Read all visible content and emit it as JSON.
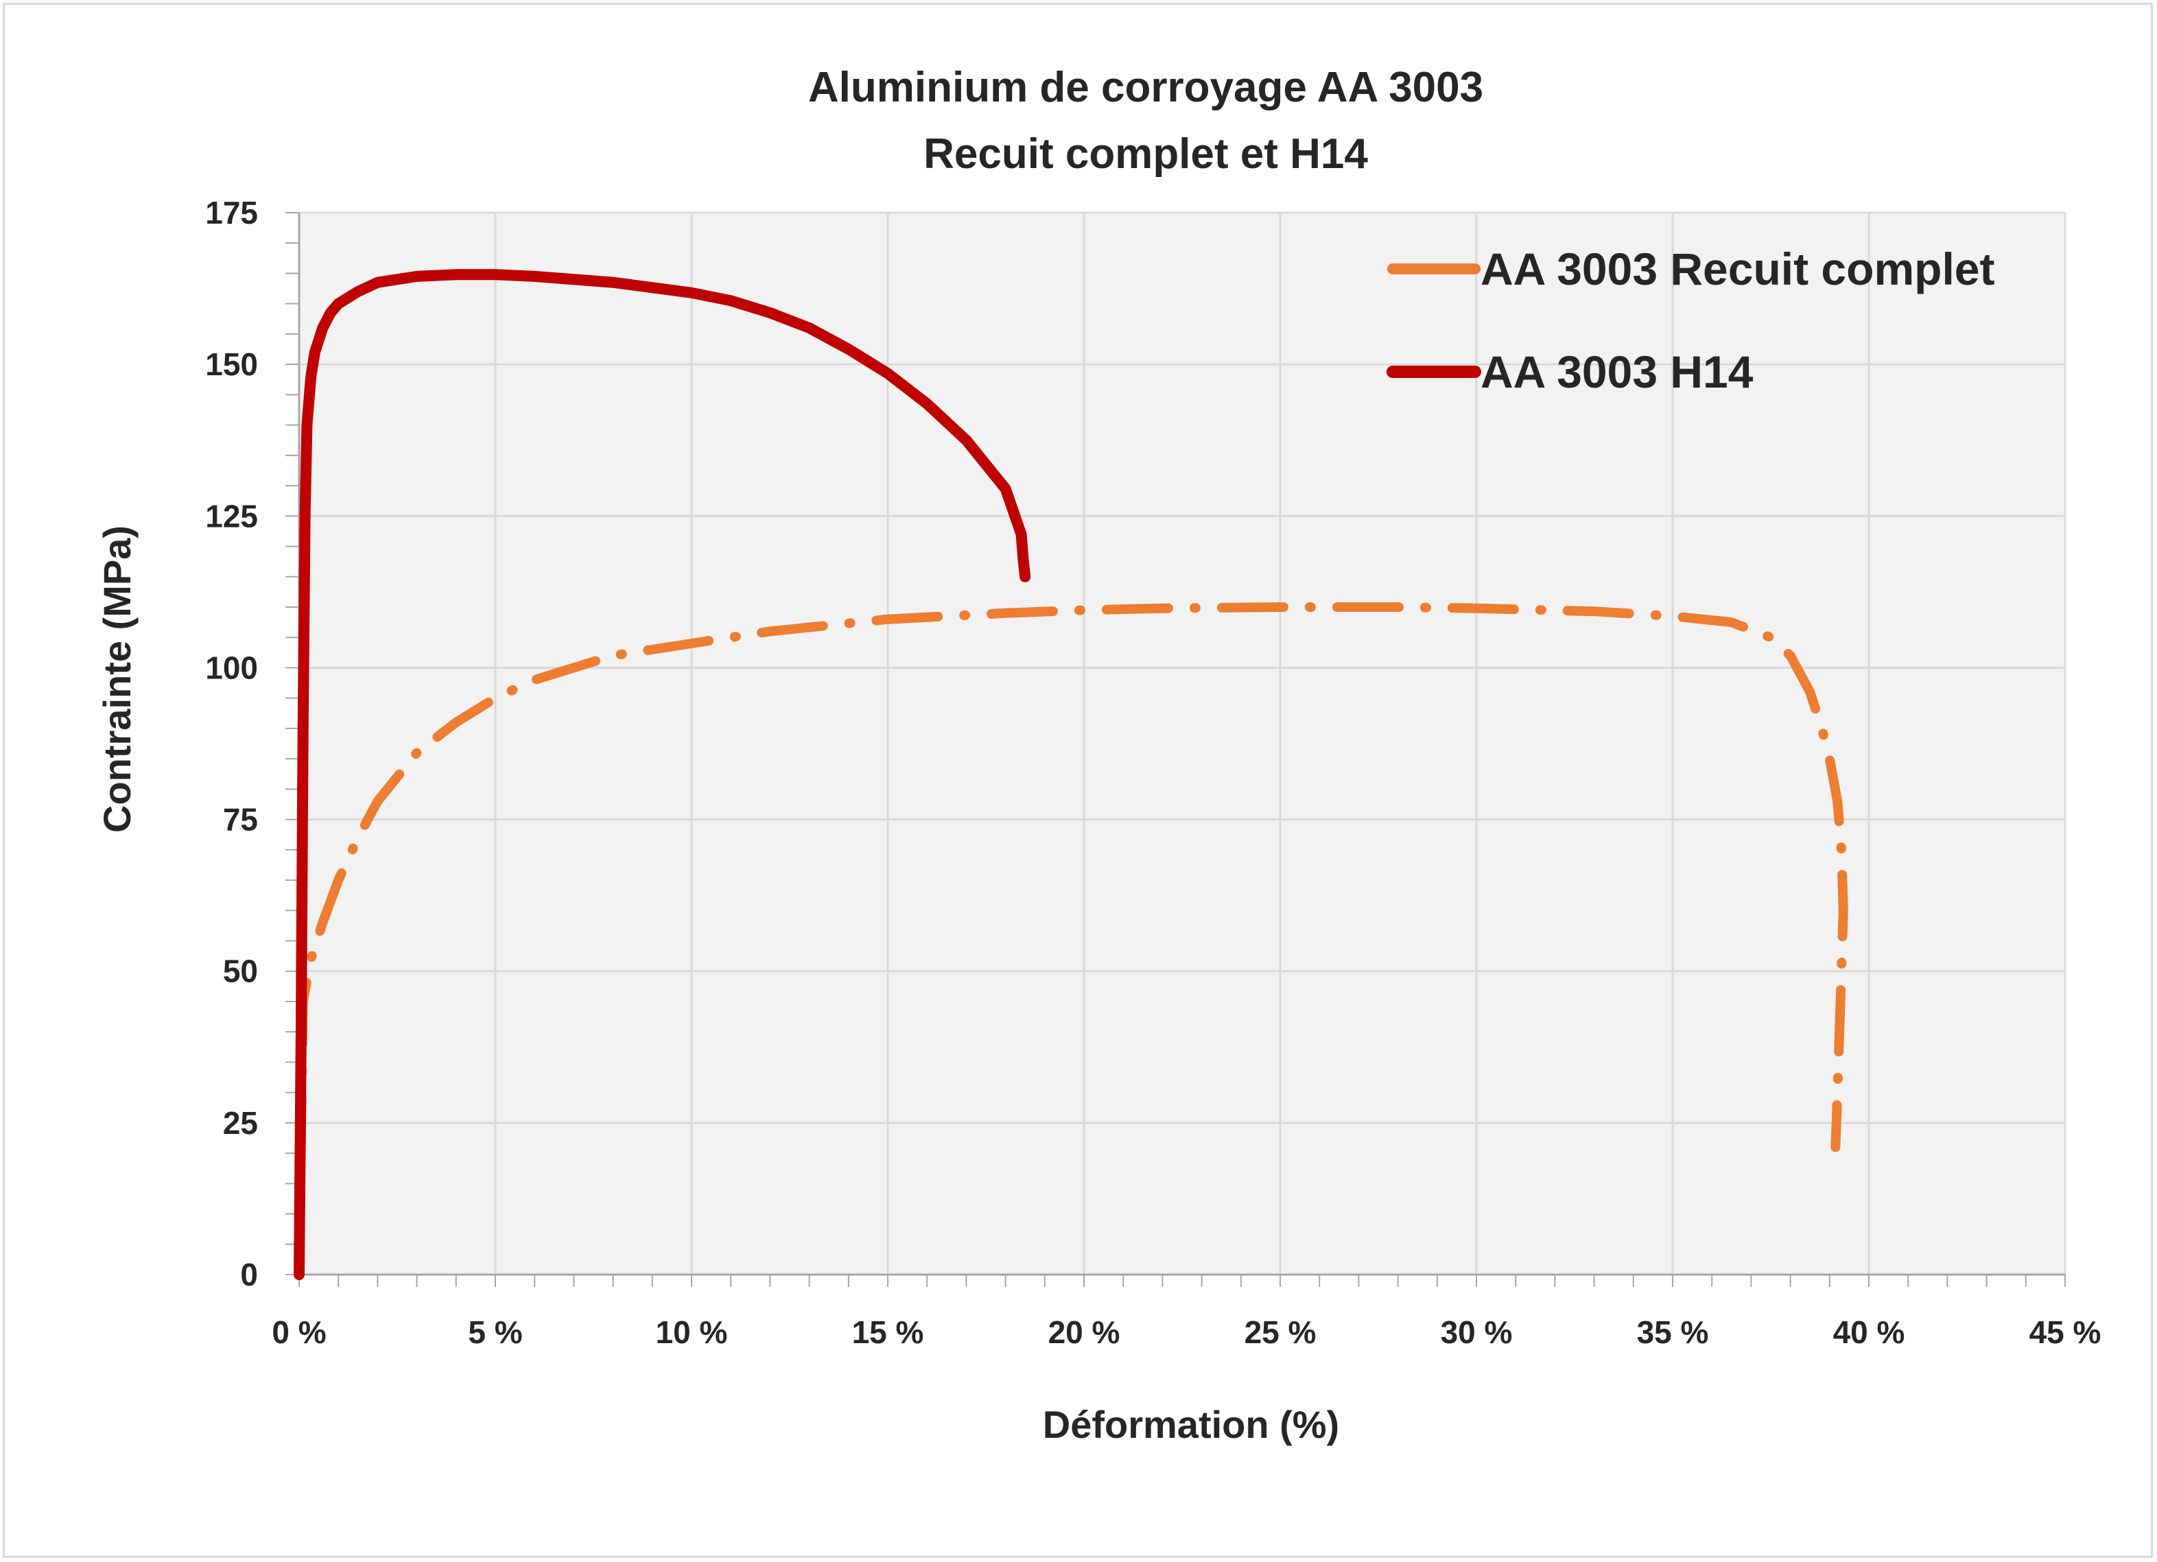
{
  "chart_data": {
    "type": "line",
    "title": "Aluminium de corroyage AA 3003",
    "subtitle": "Recuit complet et H14",
    "xlabel": "Déformation (%)",
    "ylabel": "Contrainte (MPa)",
    "xlim": [
      0,
      45
    ],
    "ylim": [
      0,
      175
    ],
    "x_ticks": [
      0,
      5,
      10,
      15,
      20,
      25,
      30,
      35,
      40,
      45
    ],
    "x_tick_labels": [
      "0 %",
      "5 %",
      "10 %",
      "15 %",
      "20 %",
      "25 %",
      "30 %",
      "35 %",
      "40 %",
      "45 %"
    ],
    "y_ticks": [
      0,
      25,
      50,
      75,
      100,
      125,
      150,
      175
    ],
    "y_tick_labels": [
      "0",
      "25",
      "50",
      "75",
      "100",
      "125",
      "150",
      "175"
    ],
    "grid": true,
    "legend_position": "top-right",
    "series": [
      {
        "name": "AA 3003 Recuit complet",
        "color": "#ed7d31",
        "style": "dash-dot",
        "x": [
          0,
          0.1,
          0.3,
          0.6,
          1.0,
          1.5,
          2.0,
          3.0,
          4.0,
          5.0,
          6.0,
          8.0,
          10.0,
          12.0,
          15.0,
          18.0,
          20.0,
          22.0,
          25.0,
          28.0,
          30.0,
          33.0,
          35.0,
          36.5,
          37.5,
          38.0,
          38.5,
          38.8,
          39.0,
          39.2,
          39.3,
          39.35,
          39.3,
          39.25,
          39.2,
          39.15
        ],
        "y": [
          0,
          45,
          52,
          58,
          65,
          72,
          78,
          86,
          91,
          95,
          98,
          102,
          104,
          106,
          108,
          109,
          109.5,
          109.8,
          110,
          110,
          109.8,
          109.3,
          108.5,
          107.5,
          105,
          102,
          96,
          90,
          85,
          78,
          70,
          60,
          50,
          40,
          30,
          21
        ]
      },
      {
        "name": "AA 3003 H14",
        "color": "#c00000",
        "style": "solid",
        "x": [
          0,
          0.05,
          0.1,
          0.15,
          0.2,
          0.3,
          0.4,
          0.6,
          0.8,
          1.0,
          1.5,
          2.0,
          3.0,
          4.0,
          5.0,
          6.0,
          8.0,
          10.0,
          11.0,
          12.0,
          13.0,
          14.0,
          15.0,
          16.0,
          17.0,
          18.0,
          18.4,
          18.45,
          18.5
        ],
        "y": [
          0,
          40,
          90,
          125,
          140,
          148,
          152,
          156,
          158.5,
          160,
          162,
          163.5,
          164.5,
          164.8,
          164.8,
          164.5,
          163.5,
          161.8,
          160.5,
          158.5,
          156,
          152.5,
          148.5,
          143.5,
          137.5,
          129.5,
          122,
          118,
          115
        ]
      }
    ]
  }
}
